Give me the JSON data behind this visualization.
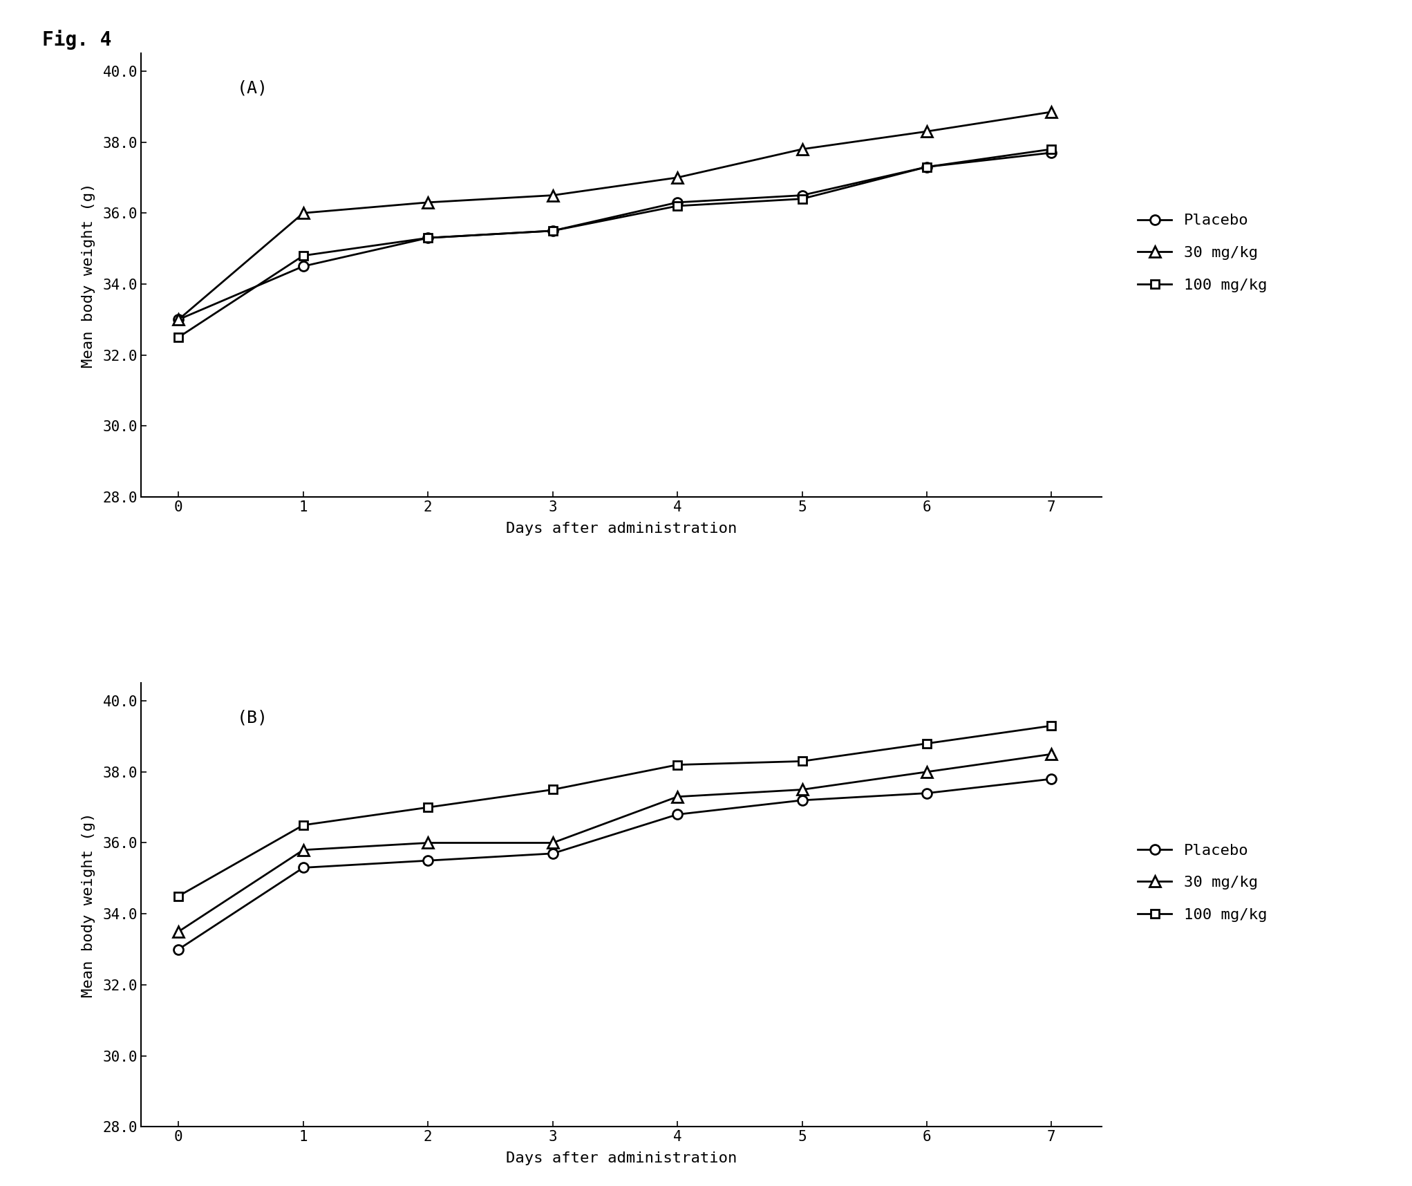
{
  "fig_label": "Fig. 4",
  "panels": [
    {
      "label": "(A)",
      "placebo": [
        33.0,
        34.5,
        35.3,
        35.5,
        36.3,
        36.5,
        37.3,
        37.7
      ],
      "mg30": [
        33.0,
        36.0,
        36.3,
        36.5,
        37.0,
        37.8,
        38.3,
        38.85
      ],
      "mg100": [
        32.5,
        34.8,
        35.3,
        35.5,
        36.2,
        36.4,
        37.3,
        37.8
      ]
    },
    {
      "label": "(B)",
      "placebo": [
        33.0,
        35.3,
        35.5,
        35.7,
        36.8,
        37.2,
        37.4,
        37.8
      ],
      "mg30": [
        33.5,
        35.8,
        36.0,
        36.0,
        37.3,
        37.5,
        38.0,
        38.5
      ],
      "mg100": [
        34.5,
        36.5,
        37.0,
        37.5,
        38.2,
        38.3,
        38.8,
        39.3
      ]
    }
  ],
  "days": [
    0,
    1,
    2,
    3,
    4,
    5,
    6,
    7
  ],
  "ylim": [
    28.0,
    40.5
  ],
  "yticks": [
    28.0,
    30.0,
    32.0,
    34.0,
    36.0,
    38.0,
    40.0
  ],
  "xlabel": "Days after administration",
  "ylabel": "Mean body weight (g)",
  "legend_labels": [
    "Placebo",
    "30 mg/kg",
    "100 mg/kg"
  ],
  "line_color": "#000000",
  "bg_color": "#ffffff",
  "fontsize_label": 16,
  "fontsize_tick": 15,
  "fontsize_legend": 16,
  "fontsize_panel_label": 18,
  "fontsize_fig_label": 20
}
